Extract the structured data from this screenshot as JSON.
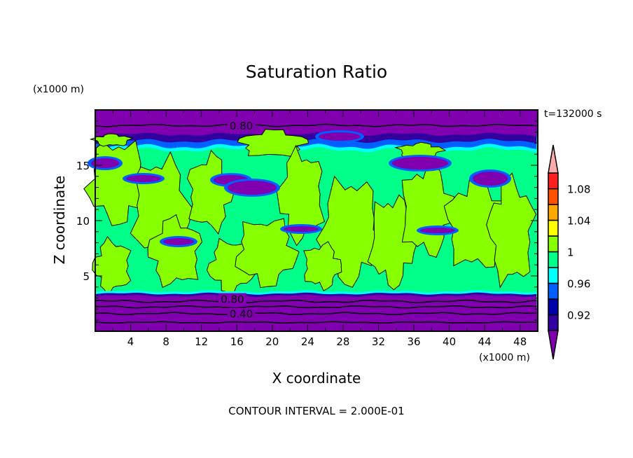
{
  "chart_data": {
    "type": "heatmap",
    "title": "Saturation Ratio",
    "xlabel": "X coordinate",
    "ylabel": "Z coordinate",
    "x_unit": "(x1000 m)",
    "y_unit": "(x1000 m)",
    "xlim": [
      0,
      50
    ],
    "ylim": [
      0,
      20
    ],
    "x_ticks": [
      4,
      8,
      12,
      16,
      20,
      24,
      28,
      32,
      36,
      40,
      44,
      48
    ],
    "y_ticks": [
      5,
      10,
      15
    ],
    "time_label": "t=132000 s",
    "footer": "CONTOUR INTERVAL = 2.000E-01",
    "contour_labels": [
      "0.80",
      "0.80",
      "0.40"
    ],
    "colorbar": {
      "levels": [
        0.9,
        0.92,
        0.94,
        0.96,
        0.98,
        1.0,
        1.02,
        1.04,
        1.06,
        1.08,
        1.1
      ],
      "tick_labels": [
        {
          "value": 0.92,
          "label": "0.92"
        },
        {
          "value": 0.96,
          "label": "0.96"
        },
        {
          "value": 1.0,
          "label": "1"
        },
        {
          "value": 1.04,
          "label": "1.04"
        },
        {
          "value": 1.08,
          "label": "1.08"
        }
      ],
      "colors": [
        "#3300a0",
        "#0000aa",
        "#0060ff",
        "#00ffff",
        "#00ff88",
        "#88ff00",
        "#ffff00",
        "#ffa800",
        "#ff5000",
        "#ff2020"
      ],
      "under_color": "#8000b0",
      "over_color": "#ffaaaa"
    }
  }
}
